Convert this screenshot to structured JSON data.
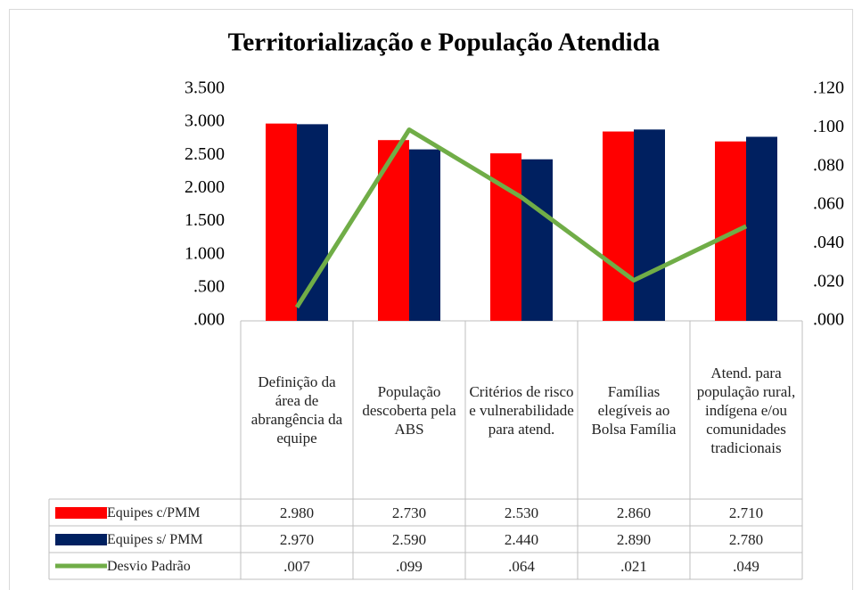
{
  "chart_data": {
    "type": "bar",
    "title": "Territorialização e População Atendida",
    "categories": [
      "Definição da área de abrangência da equipe",
      "População descoberta pela ABS",
      "Critérios de risco e vulnerabilidade para atend.",
      "Famílias elegíveis ao Bolsa Família",
      "Atend. para população rural, indígena e/ou comunidades tradicionais"
    ],
    "series": [
      {
        "name": "Equipes c/PMM",
        "color": "#ff0000",
        "values": [
          2.98,
          2.73,
          2.53,
          2.86,
          2.71
        ],
        "value_labels": [
          "2.980",
          "2.730",
          "2.530",
          "2.860",
          "2.710"
        ]
      },
      {
        "name": "Equipes s/ PMM",
        "color": "#002060",
        "values": [
          2.97,
          2.59,
          2.44,
          2.89,
          2.78
        ],
        "value_labels": [
          "2.970",
          "2.590",
          "2.440",
          "2.890",
          "2.780"
        ]
      },
      {
        "name": "Desvio Padrão",
        "color": "#70ad47",
        "type": "line",
        "axis": "y2",
        "values": [
          0.007,
          0.099,
          0.064,
          0.021,
          0.049
        ],
        "value_labels": [
          ".007",
          ".099",
          ".064",
          ".021",
          ".049"
        ]
      }
    ],
    "ylim": [
      0,
      3.5
    ],
    "yticks": [
      {
        "value": 0,
        "label": ".000"
      },
      {
        "value": 0.5,
        "label": ".500"
      },
      {
        "value": 1,
        "label": "1.000"
      },
      {
        "value": 1.5,
        "label": "1.500"
      },
      {
        "value": 2,
        "label": "2.000"
      },
      {
        "value": 2.5,
        "label": "2.500"
      },
      {
        "value": 3,
        "label": "3.000"
      },
      {
        "value": 3.5,
        "label": "3.500"
      }
    ],
    "y2lim": [
      0,
      0.12
    ],
    "y2ticks": [
      {
        "value": 0,
        "label": ".000"
      },
      {
        "value": 0.02,
        "label": ".020"
      },
      {
        "value": 0.04,
        "label": ".040"
      },
      {
        "value": 0.06,
        "label": ".060"
      },
      {
        "value": 0.08,
        "label": ".080"
      },
      {
        "value": 0.1,
        "label": ".100"
      },
      {
        "value": 0.12,
        "label": ".120"
      }
    ],
    "grid": false
  }
}
